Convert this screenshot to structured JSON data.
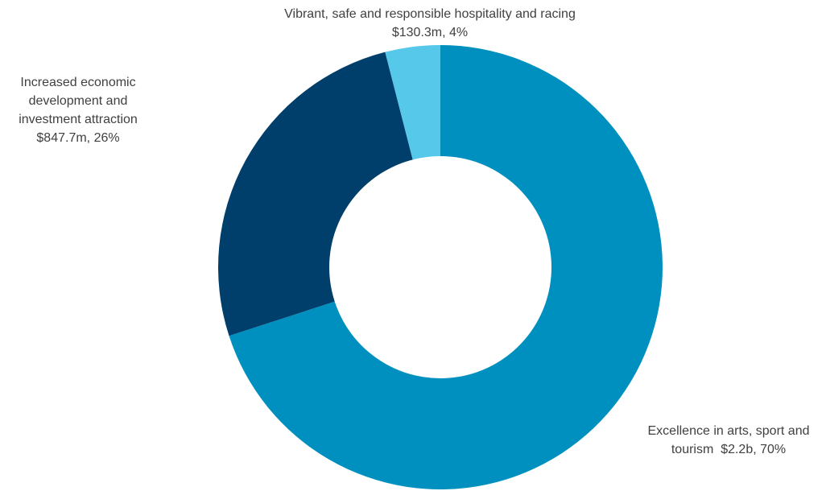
{
  "chart_data": {
    "type": "donut",
    "categories": [
      "Excellence in arts, sport and tourism",
      "Increased economic development and investment attraction",
      "Vibrant, safe and responsible hospitality and racing"
    ],
    "values": [
      70,
      26,
      4
    ],
    "value_labels": [
      "$2.2b, 70%",
      "$847.7m, 26%",
      "$130.3m, 4%"
    ],
    "colors": [
      "#0090bf",
      "#003f6b",
      "#56c8ea"
    ]
  }
}
